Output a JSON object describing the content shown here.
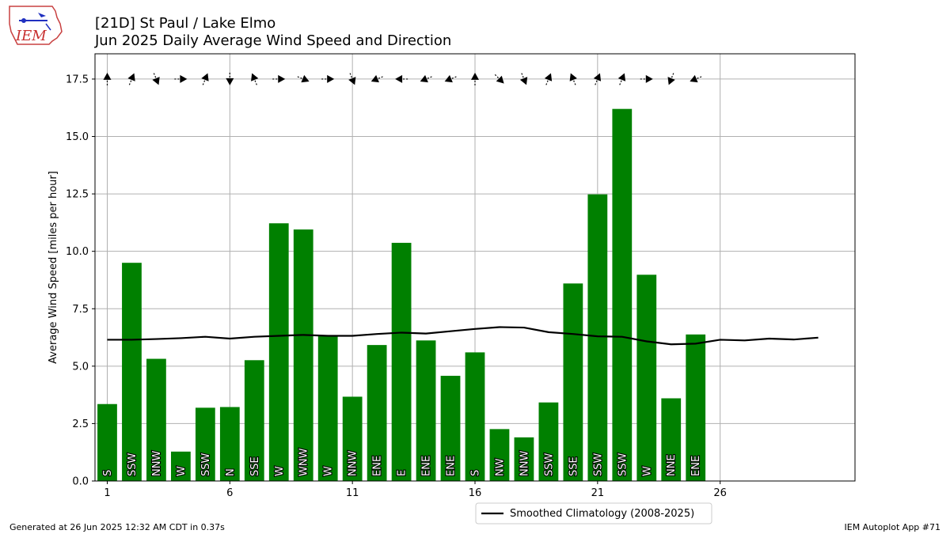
{
  "header": {
    "logo_text": "IEM",
    "title_line1": "[21D] St Paul / Lake Elmo",
    "title_line2": "Jun 2025 Daily Average Wind Speed and Direction"
  },
  "footer": {
    "generated": "Generated at 26 Jun 2025 12:32 AM CDT in 0.37s",
    "app": "IEM Autoplot App #71"
  },
  "colors": {
    "bar": "#008000",
    "climatology": "#000000",
    "grid": "#b0b0b0"
  },
  "chart_data": {
    "type": "bar",
    "ylabel": "Average Wind Speed [miles per hour]",
    "xlim": [
      0.5,
      31.5
    ],
    "ylim": [
      0,
      18.6
    ],
    "x_ticks": [
      1,
      6,
      11,
      16,
      21,
      26
    ],
    "y_ticks": [
      "0.0",
      "2.5",
      "5.0",
      "7.5",
      "10.0",
      "12.5",
      "15.0",
      "17.5"
    ],
    "grid": true,
    "legend_position": "bottom-center",
    "days": [
      1,
      2,
      3,
      4,
      5,
      6,
      7,
      8,
      9,
      10,
      11,
      12,
      13,
      14,
      15,
      16,
      17,
      18,
      19,
      20,
      21,
      22,
      23,
      24,
      25
    ],
    "speeds": [
      3.35,
      9.5,
      5.32,
      1.28,
      3.19,
      3.22,
      5.26,
      11.22,
      10.95,
      6.35,
      3.67,
      5.92,
      10.37,
      6.12,
      4.58,
      5.6,
      2.26,
      1.9,
      3.42,
      8.6,
      12.48,
      16.2,
      8.98,
      3.6,
      6.38
    ],
    "directions": [
      "S",
      "SSW",
      "NNW",
      "W",
      "SSW",
      "N",
      "SSE",
      "W",
      "WNW",
      "W",
      "NNW",
      "ENE",
      "E",
      "ENE",
      "ENE",
      "S",
      "NW",
      "NNW",
      "SSW",
      "SSE",
      "SSW",
      "SSW",
      "W",
      "NNE",
      "ENE"
    ],
    "arrow_level": 17.5,
    "series": [
      {
        "name": "Smoothed Climatology (2008-2025)",
        "x": [
          1,
          2,
          3,
          4,
          5,
          6,
          7,
          8,
          9,
          10,
          11,
          12,
          13,
          14,
          15,
          16,
          17,
          18,
          19,
          20,
          21,
          22,
          23,
          24,
          25,
          26,
          27,
          28,
          29,
          30
        ],
        "values": [
          6.15,
          6.15,
          6.18,
          6.22,
          6.28,
          6.2,
          6.28,
          6.32,
          6.36,
          6.32,
          6.32,
          6.4,
          6.46,
          6.42,
          6.52,
          6.62,
          6.7,
          6.68,
          6.48,
          6.4,
          6.3,
          6.28,
          6.08,
          5.95,
          5.98,
          6.15,
          6.12,
          6.2,
          6.16,
          6.24
        ]
      }
    ]
  }
}
